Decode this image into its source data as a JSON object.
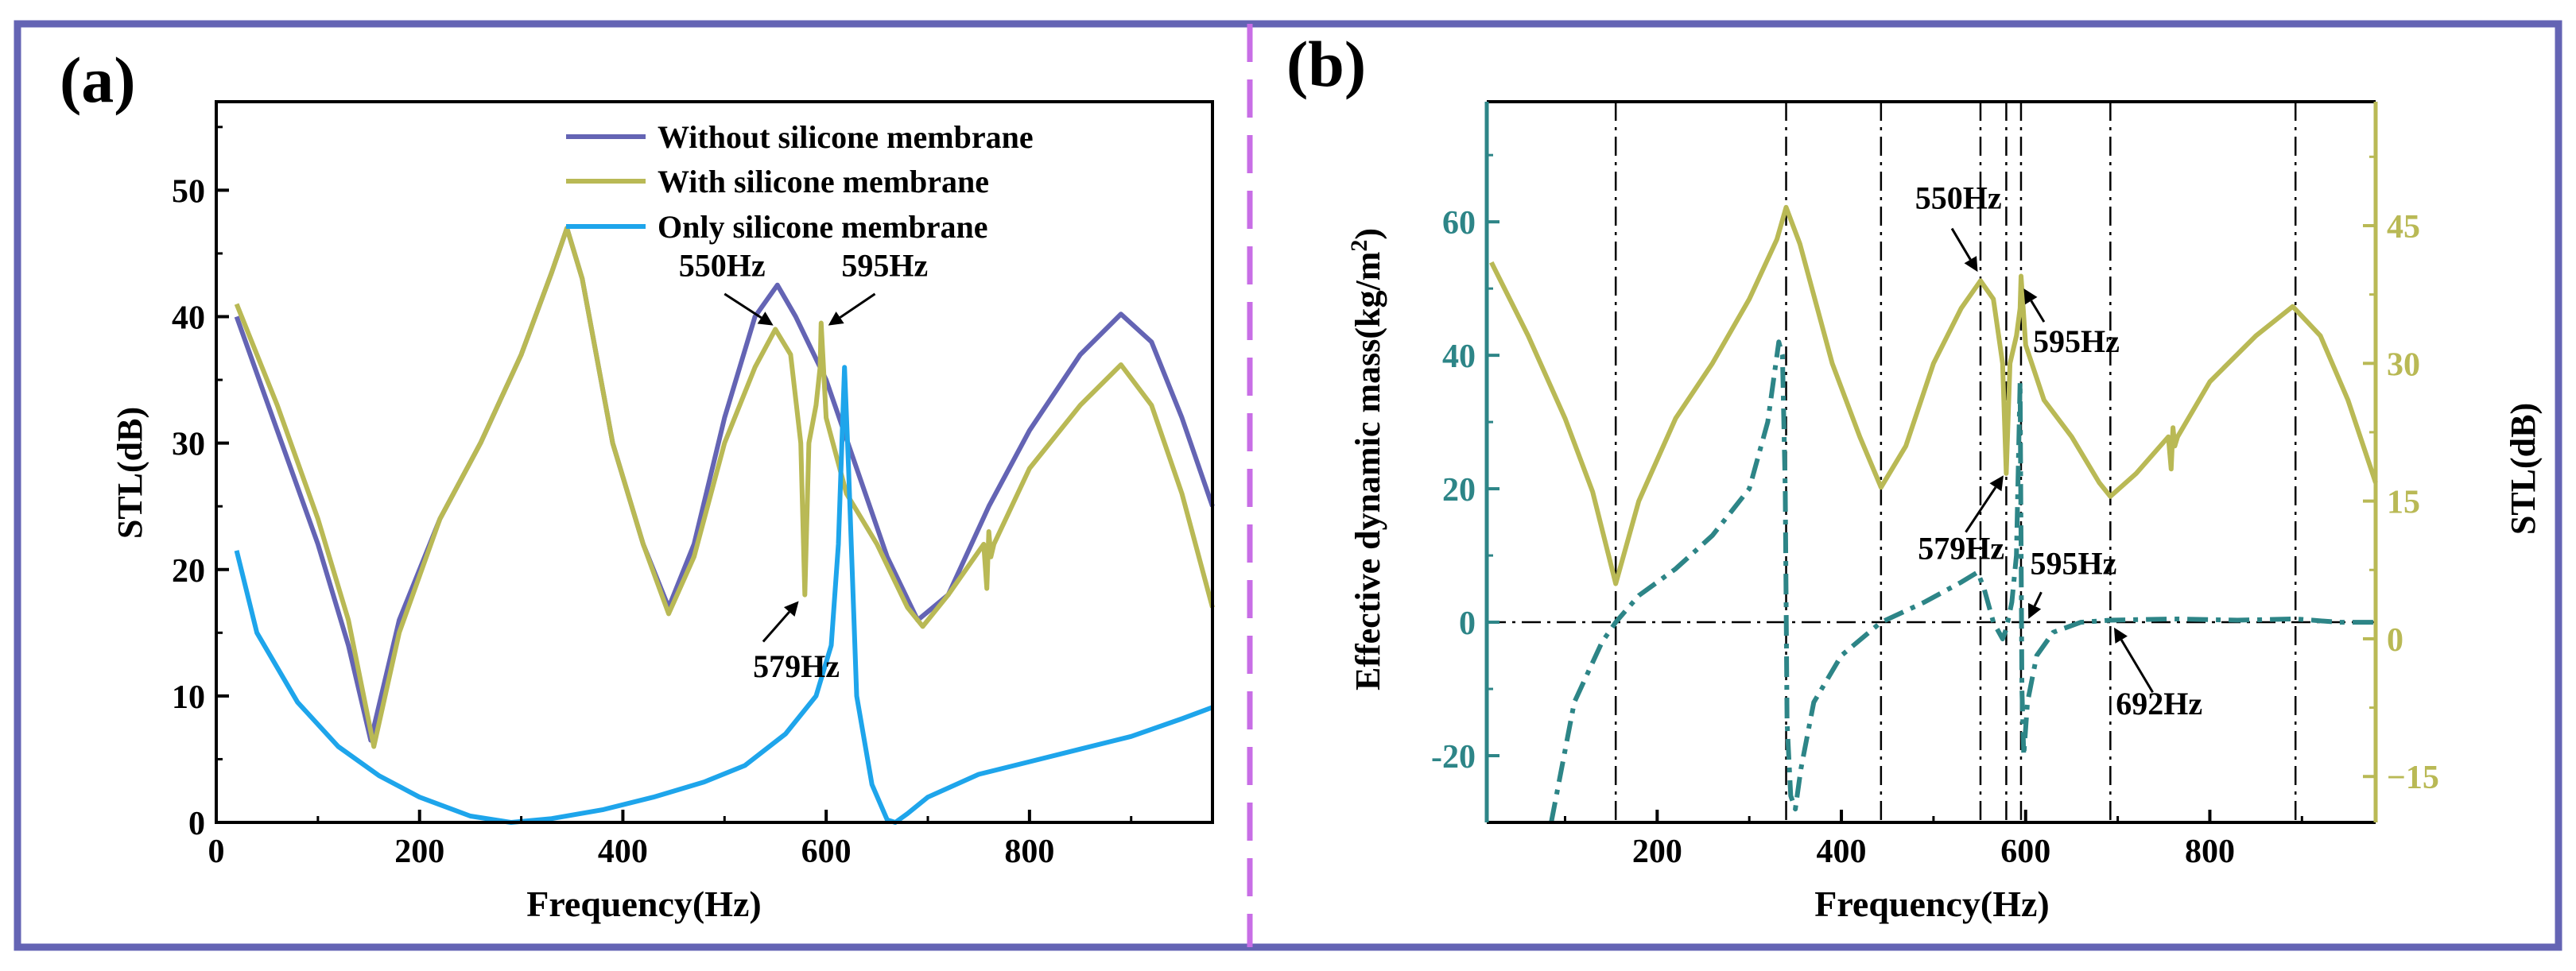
{
  "figure": {
    "frame_color": "#6464b4",
    "divider_color": "#c86ee6"
  },
  "chart_data": [
    {
      "id": "a",
      "type": "line",
      "panel_label": "(a)",
      "xlabel": "Frequency(Hz)",
      "ylabel": "STL(dB)",
      "xlim": [
        0,
        980
      ],
      "ylim": [
        0,
        57
      ],
      "xticks": [
        0,
        200,
        400,
        600,
        800
      ],
      "yticks": [
        0,
        10,
        20,
        30,
        40,
        50
      ],
      "legend": {
        "position": "top-right",
        "entries": [
          "Without silicone membrane",
          "With silicone membrane",
          "Only silicone membrane"
        ]
      },
      "series": [
        {
          "name": "Without silicone membrane",
          "color": "#6464b4",
          "x": [
            20,
            60,
            100,
            130,
            152,
            180,
            220,
            260,
            300,
            330,
            345,
            360,
            390,
            420,
            445,
            470,
            500,
            530,
            552,
            570,
            600,
            630,
            660,
            690,
            720,
            760,
            800,
            850,
            890,
            920,
            950,
            980
          ],
          "y": [
            40,
            31,
            22,
            14,
            6.5,
            16,
            24,
            30,
            37,
            43.5,
            47,
            43,
            30,
            22,
            17,
            22,
            32,
            40,
            42.5,
            40,
            35,
            28,
            21,
            16,
            18,
            25,
            31,
            37,
            40.2,
            38,
            32,
            25
          ]
        },
        {
          "name": "With silicone membrane",
          "color": "#b9b955",
          "x": [
            20,
            60,
            100,
            130,
            155,
            180,
            220,
            260,
            300,
            330,
            345,
            360,
            390,
            420,
            445,
            470,
            500,
            530,
            550,
            565,
            575,
            579,
            583,
            590,
            594,
            595,
            600,
            620,
            650,
            680,
            695,
            720,
            755,
            758,
            760,
            762,
            765,
            800,
            850,
            890,
            920,
            950,
            980
          ],
          "y": [
            41,
            33,
            24,
            16,
            6,
            15,
            24,
            30,
            37,
            43.5,
            47,
            43,
            30,
            22,
            16.5,
            21,
            30,
            36,
            39,
            37,
            30,
            18,
            30,
            33,
            36,
            39.5,
            32,
            26,
            22,
            17,
            15.5,
            18,
            22,
            18.5,
            23,
            21,
            22,
            28,
            33,
            36.2,
            33,
            26,
            17
          ]
        },
        {
          "name": "Only silicone membrane",
          "color": "#1ea5eb",
          "x": [
            20,
            40,
            80,
            120,
            160,
            200,
            250,
            290,
            330,
            380,
            430,
            480,
            520,
            560,
            590,
            605,
            612,
            618,
            622,
            630,
            645,
            660,
            668,
            680,
            700,
            750,
            800,
            850,
            900,
            950,
            980
          ],
          "y": [
            21.5,
            15,
            9.5,
            6,
            3.7,
            2,
            0.5,
            0,
            0.3,
            1,
            2,
            3.2,
            4.5,
            7,
            10,
            14,
            22,
            36,
            28,
            10,
            3,
            0.2,
            0,
            0.7,
            2,
            3.8,
            4.8,
            5.8,
            6.8,
            8.2,
            9.1
          ]
        }
      ],
      "annotations": [
        {
          "text": "550Hz",
          "x": 550,
          "y": 39
        },
        {
          "text": "595Hz",
          "x": 595,
          "y": 39.5
        },
        {
          "text": "579Hz",
          "x": 579,
          "y": 18
        }
      ]
    },
    {
      "id": "b",
      "type": "line",
      "panel_label": "(b)",
      "xlabel": "Frequency(Hz)",
      "ylabel_left": "Effective dynamic mass(kg/m",
      "ylabel_left_sup": "2",
      "ylabel_left_end": ")",
      "ylabel_right": "STL(dB)",
      "xlim": [
        15,
        980
      ],
      "ylim_left": [
        -30,
        78
      ],
      "ylim_right": [
        -20,
        58.5
      ],
      "xticks": [
        200,
        400,
        600,
        800
      ],
      "yticks_left": [
        -20,
        0,
        20,
        40,
        60
      ],
      "yticks_right": [
        -15,
        0,
        15,
        30,
        45
      ],
      "ytick_labels_right": [
        "−15",
        "0",
        "15",
        "30",
        "45"
      ],
      "vlines": [
        155,
        340,
        443,
        551,
        579,
        595,
        692,
        893
      ],
      "hline": 0,
      "series": [
        {
          "name": "Effective dynamic mass",
          "axis": "left",
          "color": "#2d8587",
          "style": "dashdot",
          "x": [
            85,
            110,
            140,
            155,
            180,
            220,
            260,
            300,
            320,
            332,
            336,
            339,
            341,
            345,
            350,
            356,
            370,
            400,
            443,
            490,
            530,
            548,
            555,
            565,
            575,
            579,
            585,
            590,
            594,
            596,
            598,
            602,
            612,
            630,
            660,
            692,
            760,
            830,
            893,
            940,
            980
          ],
          "y": [
            -30,
            -12,
            -3,
            0,
            4,
            8,
            13,
            20,
            30,
            42,
            40,
            20,
            -15,
            -26,
            -28,
            -22,
            -12,
            -5,
            0,
            3,
            6,
            7.5,
            5,
            0,
            -2.5,
            -1,
            3,
            10,
            36,
            -10,
            -20,
            -12,
            -5,
            -1.5,
            0,
            0.3,
            0.5,
            0.3,
            0.5,
            0,
            0
          ]
        },
        {
          "name": "STL",
          "axis": "right",
          "color": "#b9b955",
          "style": "solid",
          "x": [
            20,
            60,
            100,
            130,
            155,
            180,
            220,
            260,
            300,
            330,
            340,
            355,
            390,
            420,
            443,
            470,
            500,
            530,
            551,
            565,
            575,
            579,
            583,
            590,
            594,
            595,
            600,
            620,
            650,
            680,
            692,
            720,
            755,
            758,
            760,
            762,
            765,
            800,
            850,
            890,
            920,
            950,
            980
          ],
          "y": [
            41,
            33,
            24,
            16,
            6,
            15,
            24,
            30,
            37,
            43.5,
            47,
            43,
            30,
            22,
            16.5,
            21,
            30,
            36,
            39,
            37,
            30,
            18,
            30,
            33,
            36,
            39.5,
            32,
            26,
            22,
            17,
            15.5,
            18,
            22,
            18.5,
            23,
            21,
            22,
            28,
            33,
            36.2,
            33,
            26,
            17
          ]
        }
      ],
      "annotations": [
        {
          "text": "550Hz",
          "x": 551,
          "y": 39
        },
        {
          "text": "595Hz",
          "x": 595,
          "y": 36
        },
        {
          "text": "579Hz",
          "x": 579,
          "y": 18
        },
        {
          "text": "595Hz",
          "x": 595,
          "y": 0
        },
        {
          "text": "692Hz",
          "x": 692,
          "y": 0
        }
      ]
    }
  ]
}
